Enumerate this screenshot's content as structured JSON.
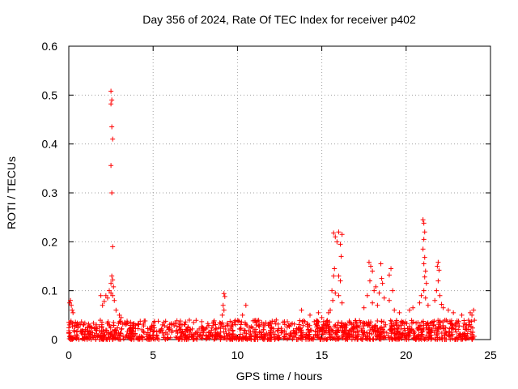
{
  "chart_data": {
    "type": "scatter",
    "title": "Day 356 of 2024, Rate Of TEC Index for receiver p402",
    "xlabel": "GPS time / hours",
    "ylabel": "ROTI / TECUs",
    "xlim": [
      0,
      25
    ],
    "ylim": [
      0,
      0.6
    ],
    "xticks": [
      "0",
      "5",
      "10",
      "15",
      "20",
      "25"
    ],
    "yticks": [
      "0",
      "0.1",
      "0.2",
      "0.3",
      "0.4",
      "0.5",
      "0.6"
    ],
    "xtick_values": [
      0,
      5,
      10,
      15,
      20,
      25
    ],
    "ytick_values": [
      0,
      0.1,
      0.2,
      0.3,
      0.4,
      0.5,
      0.6
    ],
    "grid": true,
    "marker": "+",
    "color": "#ff0000",
    "series": [
      {
        "name": "ROTI",
        "points": [
          [
            2.5,
            0.508
          ],
          [
            2.55,
            0.49
          ],
          [
            2.5,
            0.482
          ],
          [
            2.55,
            0.435
          ],
          [
            2.6,
            0.41
          ],
          [
            2.5,
            0.356
          ],
          [
            2.55,
            0.3
          ],
          [
            2.6,
            0.19
          ],
          [
            2.55,
            0.13
          ],
          [
            2.6,
            0.122
          ],
          [
            2.5,
            0.115
          ],
          [
            2.65,
            0.108
          ],
          [
            2.4,
            0.1
          ],
          [
            2.5,
            0.095
          ],
          [
            2.6,
            0.09
          ],
          [
            2.2,
            0.09
          ],
          [
            1.9,
            0.09
          ],
          [
            2.3,
            0.085
          ],
          [
            2.1,
            0.078
          ],
          [
            2.0,
            0.07
          ],
          [
            2.7,
            0.08
          ],
          [
            2.8,
            0.06
          ],
          [
            3.0,
            0.05
          ],
          [
            3.1,
            0.045
          ],
          [
            0.1,
            0.08
          ],
          [
            0.05,
            0.075
          ],
          [
            0.15,
            0.07
          ],
          [
            0.2,
            0.06
          ],
          [
            0.25,
            0.055
          ],
          [
            9.2,
            0.094
          ],
          [
            9.25,
            0.088
          ],
          [
            9.15,
            0.07
          ],
          [
            9.2,
            0.06
          ],
          [
            9.1,
            0.05
          ],
          [
            10.5,
            0.07
          ],
          [
            10.3,
            0.05
          ],
          [
            12.3,
            0.04
          ],
          [
            13.8,
            0.06
          ],
          [
            14.3,
            0.05
          ],
          [
            15.7,
            0.218
          ],
          [
            15.8,
            0.21
          ],
          [
            16.0,
            0.22
          ],
          [
            16.2,
            0.215
          ],
          [
            15.9,
            0.2
          ],
          [
            16.1,
            0.195
          ],
          [
            16.15,
            0.17
          ],
          [
            15.75,
            0.145
          ],
          [
            15.7,
            0.13
          ],
          [
            16.0,
            0.13
          ],
          [
            16.1,
            0.12
          ],
          [
            15.6,
            0.1
          ],
          [
            15.8,
            0.095
          ],
          [
            16.0,
            0.09
          ],
          [
            15.65,
            0.08
          ],
          [
            16.2,
            0.075
          ],
          [
            15.5,
            0.06
          ],
          [
            15.4,
            0.055
          ],
          [
            14.8,
            0.055
          ],
          [
            15.0,
            0.045
          ],
          [
            17.8,
            0.158
          ],
          [
            17.9,
            0.15
          ],
          [
            18.5,
            0.155
          ],
          [
            18.0,
            0.14
          ],
          [
            19.1,
            0.145
          ],
          [
            19.0,
            0.132
          ],
          [
            18.55,
            0.125
          ],
          [
            17.85,
            0.12
          ],
          [
            18.6,
            0.115
          ],
          [
            18.2,
            0.108
          ],
          [
            18.1,
            0.1
          ],
          [
            18.4,
            0.095
          ],
          [
            19.2,
            0.1
          ],
          [
            17.7,
            0.09
          ],
          [
            18.7,
            0.085
          ],
          [
            19.0,
            0.08
          ],
          [
            18.0,
            0.075
          ],
          [
            18.3,
            0.07
          ],
          [
            17.5,
            0.065
          ],
          [
            19.3,
            0.06
          ],
          [
            19.6,
            0.055
          ],
          [
            20.2,
            0.06
          ],
          [
            20.4,
            0.065
          ],
          [
            21.0,
            0.245
          ],
          [
            21.05,
            0.238
          ],
          [
            21.1,
            0.22
          ],
          [
            21.05,
            0.205
          ],
          [
            21.0,
            0.185
          ],
          [
            21.1,
            0.168
          ],
          [
            21.05,
            0.155
          ],
          [
            21.15,
            0.14
          ],
          [
            21.1,
            0.128
          ],
          [
            21.2,
            0.115
          ],
          [
            21.05,
            0.1
          ],
          [
            20.9,
            0.09
          ],
          [
            21.15,
            0.085
          ],
          [
            20.8,
            0.075
          ],
          [
            21.3,
            0.07
          ],
          [
            21.9,
            0.158
          ],
          [
            21.85,
            0.15
          ],
          [
            21.95,
            0.142
          ],
          [
            21.9,
            0.12
          ],
          [
            21.8,
            0.1
          ],
          [
            22.0,
            0.09
          ],
          [
            21.7,
            0.08
          ],
          [
            22.1,
            0.072
          ],
          [
            22.2,
            0.065
          ],
          [
            22.5,
            0.06
          ],
          [
            22.8,
            0.055
          ],
          [
            23.3,
            0.05
          ],
          [
            23.8,
            0.055
          ],
          [
            24.0,
            0.06
          ],
          [
            23.9,
            0.05
          ]
        ],
        "baseline_band": {
          "x_range": [
            0,
            24.05
          ],
          "y_min": 0.0,
          "y_max": 0.04,
          "note": "dense cluster of low ROTI values across the whole day"
        }
      }
    ]
  }
}
